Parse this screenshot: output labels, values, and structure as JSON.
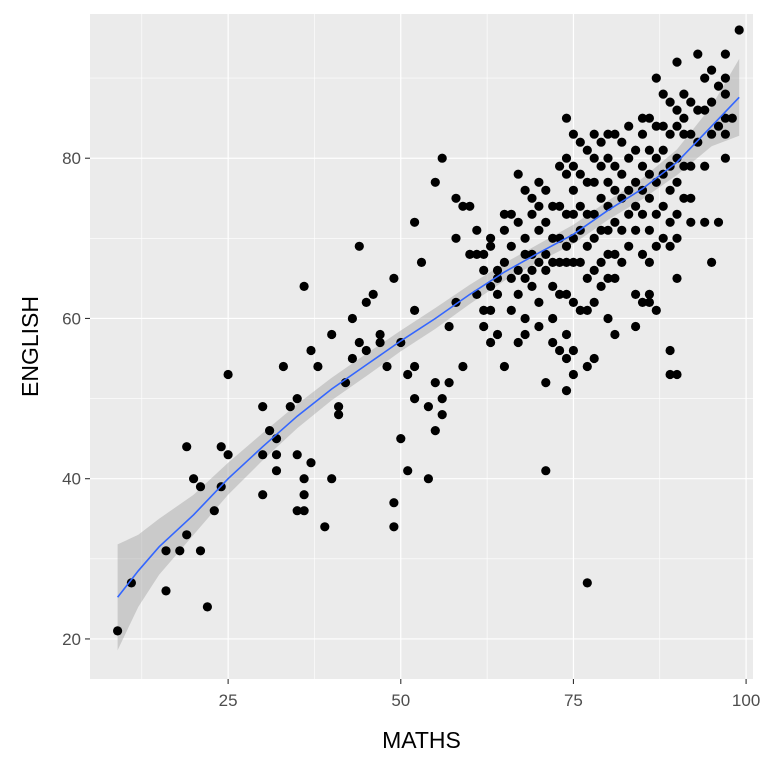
{
  "chart_data": {
    "type": "scatter",
    "title": "",
    "xlabel": "MATHS",
    "ylabel": "ENGLISH",
    "xlim": [
      5,
      101
    ],
    "ylim": [
      15,
      98
    ],
    "x_ticks": [
      25,
      50,
      75,
      100
    ],
    "y_ticks": [
      20,
      40,
      60,
      80
    ],
    "x_tick_labels": [
      "25",
      "50",
      "75",
      "100"
    ],
    "y_tick_labels": [
      "20",
      "40",
      "60",
      "80"
    ],
    "grid": true,
    "colors": {
      "panel": "#ebebeb",
      "grid": "#ffffff",
      "points": "#000000",
      "smooth_line": "#3366ff",
      "ribbon": "#999999"
    },
    "points": [
      [
        9,
        21
      ],
      [
        11,
        27
      ],
      [
        16,
        31
      ],
      [
        16,
        26
      ],
      [
        18,
        31
      ],
      [
        19,
        33
      ],
      [
        19,
        44
      ],
      [
        20,
        40
      ],
      [
        21,
        39
      ],
      [
        21,
        31
      ],
      [
        22,
        24
      ],
      [
        23,
        36
      ],
      [
        24,
        44
      ],
      [
        24,
        39
      ],
      [
        25,
        53
      ],
      [
        25,
        43
      ],
      [
        30,
        49
      ],
      [
        30,
        43
      ],
      [
        30,
        38
      ],
      [
        31,
        46
      ],
      [
        32,
        45
      ],
      [
        32,
        43
      ],
      [
        32,
        41
      ],
      [
        33,
        54
      ],
      [
        34,
        49
      ],
      [
        35,
        50
      ],
      [
        35,
        43
      ],
      [
        35,
        36
      ],
      [
        36,
        64
      ],
      [
        36,
        40
      ],
      [
        36,
        38
      ],
      [
        36,
        36
      ],
      [
        37,
        56
      ],
      [
        37,
        42
      ],
      [
        38,
        54
      ],
      [
        39,
        34
      ],
      [
        40,
        58
      ],
      [
        40,
        40
      ],
      [
        41,
        49
      ],
      [
        41,
        48
      ],
      [
        42,
        52
      ],
      [
        43,
        60
      ],
      [
        43,
        55
      ],
      [
        44,
        69
      ],
      [
        44,
        57
      ],
      [
        45,
        56
      ],
      [
        45,
        62
      ],
      [
        46,
        63
      ],
      [
        47,
        58
      ],
      [
        47,
        57
      ],
      [
        48,
        54
      ],
      [
        49,
        65
      ],
      [
        49,
        37
      ],
      [
        49,
        34
      ],
      [
        50,
        57
      ],
      [
        50,
        45
      ],
      [
        51,
        53
      ],
      [
        51,
        41
      ],
      [
        52,
        72
      ],
      [
        52,
        61
      ],
      [
        52,
        54
      ],
      [
        52,
        50
      ],
      [
        53,
        67
      ],
      [
        54,
        49
      ],
      [
        54,
        40
      ],
      [
        55,
        77
      ],
      [
        55,
        52
      ],
      [
        55,
        46
      ],
      [
        56,
        80
      ],
      [
        56,
        50
      ],
      [
        56,
        48
      ],
      [
        57,
        52
      ],
      [
        57,
        59
      ],
      [
        58,
        75
      ],
      [
        58,
        70
      ],
      [
        58,
        62
      ],
      [
        59,
        74
      ],
      [
        59,
        54
      ],
      [
        60,
        74
      ],
      [
        60,
        68
      ],
      [
        61,
        71
      ],
      [
        61,
        68
      ],
      [
        61,
        63
      ],
      [
        62,
        68
      ],
      [
        62,
        66
      ],
      [
        62,
        61
      ],
      [
        62,
        59
      ],
      [
        63,
        70
      ],
      [
        63,
        69
      ],
      [
        63,
        64
      ],
      [
        63,
        61
      ],
      [
        63,
        57
      ],
      [
        64,
        66
      ],
      [
        64,
        65
      ],
      [
        64,
        63
      ],
      [
        64,
        58
      ],
      [
        65,
        73
      ],
      [
        65,
        71
      ],
      [
        65,
        67
      ],
      [
        65,
        54
      ],
      [
        66,
        73
      ],
      [
        66,
        69
      ],
      [
        66,
        65
      ],
      [
        66,
        61
      ],
      [
        67,
        78
      ],
      [
        67,
        72
      ],
      [
        67,
        66
      ],
      [
        67,
        63
      ],
      [
        67,
        57
      ],
      [
        68,
        76
      ],
      [
        68,
        70
      ],
      [
        68,
        68
      ],
      [
        68,
        65
      ],
      [
        68,
        60
      ],
      [
        68,
        58
      ],
      [
        69,
        75
      ],
      [
        69,
        73
      ],
      [
        69,
        68
      ],
      [
        69,
        66
      ],
      [
        69,
        64
      ],
      [
        70,
        77
      ],
      [
        70,
        74
      ],
      [
        70,
        71
      ],
      [
        70,
        67
      ],
      [
        70,
        62
      ],
      [
        70,
        59
      ],
      [
        71,
        76
      ],
      [
        71,
        72
      ],
      [
        71,
        68
      ],
      [
        71,
        66
      ],
      [
        71,
        52
      ],
      [
        71,
        41
      ],
      [
        72,
        74
      ],
      [
        72,
        70
      ],
      [
        72,
        67
      ],
      [
        72,
        64
      ],
      [
        72,
        60
      ],
      [
        72,
        57
      ],
      [
        73,
        79
      ],
      [
        73,
        74
      ],
      [
        73,
        70
      ],
      [
        73,
        67
      ],
      [
        73,
        63
      ],
      [
        73,
        56
      ],
      [
        74,
        85
      ],
      [
        74,
        80
      ],
      [
        74,
        78
      ],
      [
        74,
        73
      ],
      [
        74,
        69
      ],
      [
        74,
        67
      ],
      [
        74,
        63
      ],
      [
        74,
        58
      ],
      [
        74,
        55
      ],
      [
        74,
        51
      ],
      [
        75,
        83
      ],
      [
        75,
        79
      ],
      [
        75,
        76
      ],
      [
        75,
        73
      ],
      [
        75,
        70
      ],
      [
        75,
        67
      ],
      [
        75,
        62
      ],
      [
        75,
        56
      ],
      [
        75,
        53
      ],
      [
        76,
        82
      ],
      [
        76,
        78
      ],
      [
        76,
        74
      ],
      [
        76,
        71
      ],
      [
        76,
        67
      ],
      [
        76,
        61
      ],
      [
        77,
        81
      ],
      [
        77,
        77
      ],
      [
        77,
        73
      ],
      [
        77,
        69
      ],
      [
        77,
        65
      ],
      [
        77,
        61
      ],
      [
        77,
        54
      ],
      [
        77,
        27
      ],
      [
        78,
        83
      ],
      [
        78,
        80
      ],
      [
        78,
        77
      ],
      [
        78,
        73
      ],
      [
        78,
        70
      ],
      [
        78,
        66
      ],
      [
        78,
        62
      ],
      [
        78,
        55
      ],
      [
        79,
        82
      ],
      [
        79,
        79
      ],
      [
        79,
        75
      ],
      [
        79,
        71
      ],
      [
        79,
        67
      ],
      [
        79,
        64
      ],
      [
        80,
        83
      ],
      [
        80,
        80
      ],
      [
        80,
        77
      ],
      [
        80,
        74
      ],
      [
        80,
        71
      ],
      [
        80,
        68
      ],
      [
        80,
        65
      ],
      [
        80,
        60
      ],
      [
        81,
        83
      ],
      [
        81,
        79
      ],
      [
        81,
        76
      ],
      [
        81,
        72
      ],
      [
        81,
        68
      ],
      [
        81,
        65
      ],
      [
        81,
        58
      ],
      [
        82,
        82
      ],
      [
        82,
        78
      ],
      [
        82,
        75
      ],
      [
        82,
        71
      ],
      [
        82,
        67
      ],
      [
        83,
        84
      ],
      [
        83,
        80
      ],
      [
        83,
        76
      ],
      [
        83,
        73
      ],
      [
        83,
        69
      ],
      [
        84,
        81
      ],
      [
        84,
        77
      ],
      [
        84,
        74
      ],
      [
        84,
        71
      ],
      [
        84,
        63
      ],
      [
        84,
        59
      ],
      [
        85,
        85
      ],
      [
        85,
        83
      ],
      [
        85,
        79
      ],
      [
        85,
        76
      ],
      [
        85,
        73
      ],
      [
        85,
        68
      ],
      [
        85,
        62
      ],
      [
        86,
        85
      ],
      [
        86,
        81
      ],
      [
        86,
        78
      ],
      [
        86,
        75
      ],
      [
        86,
        71
      ],
      [
        86,
        67
      ],
      [
        86,
        63
      ],
      [
        86,
        62
      ],
      [
        87,
        90
      ],
      [
        87,
        84
      ],
      [
        87,
        80
      ],
      [
        87,
        77
      ],
      [
        87,
        73
      ],
      [
        87,
        69
      ],
      [
        87,
        61
      ],
      [
        88,
        88
      ],
      [
        88,
        84
      ],
      [
        88,
        81
      ],
      [
        88,
        78
      ],
      [
        88,
        74
      ],
      [
        88,
        70
      ],
      [
        89,
        87
      ],
      [
        89,
        83
      ],
      [
        89,
        79
      ],
      [
        89,
        76
      ],
      [
        89,
        72
      ],
      [
        89,
        69
      ],
      [
        89,
        56
      ],
      [
        89,
        53
      ],
      [
        90,
        92
      ],
      [
        90,
        86
      ],
      [
        90,
        84
      ],
      [
        90,
        80
      ],
      [
        90,
        77
      ],
      [
        90,
        73
      ],
      [
        90,
        70
      ],
      [
        90,
        65
      ],
      [
        90,
        53
      ],
      [
        91,
        88
      ],
      [
        91,
        85
      ],
      [
        91,
        83
      ],
      [
        91,
        79
      ],
      [
        91,
        75
      ],
      [
        92,
        87
      ],
      [
        92,
        83
      ],
      [
        92,
        79
      ],
      [
        92,
        75
      ],
      [
        92,
        72
      ],
      [
        93,
        93
      ],
      [
        93,
        86
      ],
      [
        93,
        82
      ],
      [
        94,
        90
      ],
      [
        94,
        86
      ],
      [
        94,
        79
      ],
      [
        94,
        72
      ],
      [
        95,
        91
      ],
      [
        95,
        87
      ],
      [
        95,
        83
      ],
      [
        95,
        67
      ],
      [
        96,
        89
      ],
      [
        96,
        84
      ],
      [
        96,
        72
      ],
      [
        97,
        93
      ],
      [
        97,
        90
      ],
      [
        97,
        88
      ],
      [
        97,
        85
      ],
      [
        97,
        83
      ],
      [
        97,
        80
      ],
      [
        98,
        85
      ],
      [
        99,
        96
      ]
    ],
    "smooth_fit": [
      [
        9,
        25.2
      ],
      [
        12,
        28.5
      ],
      [
        15,
        31.5
      ],
      [
        20,
        35.5
      ],
      [
        25,
        40.0
      ],
      [
        30,
        44.0
      ],
      [
        35,
        47.8
      ],
      [
        40,
        51.2
      ],
      [
        45,
        54.2
      ],
      [
        50,
        57.2
      ],
      [
        55,
        60.0
      ],
      [
        60,
        63.0
      ],
      [
        65,
        65.8
      ],
      [
        70,
        68.2
      ],
      [
        75,
        70.5
      ],
      [
        80,
        73.5
      ],
      [
        85,
        76.2
      ],
      [
        90,
        79.5
      ],
      [
        95,
        84.0
      ],
      [
        99,
        87.6
      ]
    ],
    "smooth_se": [
      [
        9,
        18.6,
        31.8
      ],
      [
        12,
        24.0,
        33.0
      ],
      [
        15,
        28.0,
        35.0
      ],
      [
        20,
        33.0,
        38.0
      ],
      [
        25,
        38.0,
        42.0
      ],
      [
        30,
        42.3,
        45.7
      ],
      [
        35,
        46.3,
        49.3
      ],
      [
        40,
        49.8,
        52.6
      ],
      [
        45,
        52.8,
        55.6
      ],
      [
        50,
        55.9,
        58.5
      ],
      [
        55,
        58.7,
        61.3
      ],
      [
        60,
        61.8,
        64.2
      ],
      [
        65,
        64.7,
        66.9
      ],
      [
        70,
        67.1,
        69.3
      ],
      [
        75,
        69.3,
        71.7
      ],
      [
        80,
        72.3,
        74.7
      ],
      [
        85,
        74.9,
        77.5
      ],
      [
        90,
        77.9,
        81.1
      ],
      [
        95,
        81.5,
        86.5
      ],
      [
        99,
        82.8,
        92.4
      ]
    ]
  }
}
